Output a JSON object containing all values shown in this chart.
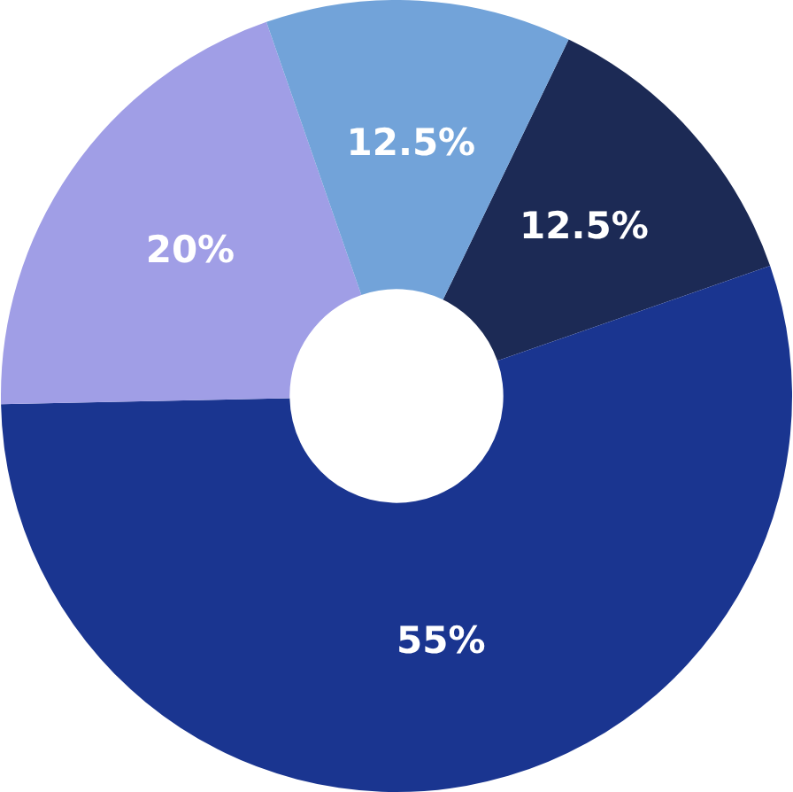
{
  "chart_data": {
    "type": "donut",
    "categories": [
      null,
      null,
      null,
      null
    ],
    "values": [
      12.5,
      55,
      20,
      12.5
    ],
    "colors": [
      "#1c2a55",
      "#1a3590",
      "#a09ee6",
      "#72a3d9"
    ],
    "value_labels": [
      "12.5%",
      "55%",
      "20%",
      "12.5%"
    ],
    "legend": false
  }
}
